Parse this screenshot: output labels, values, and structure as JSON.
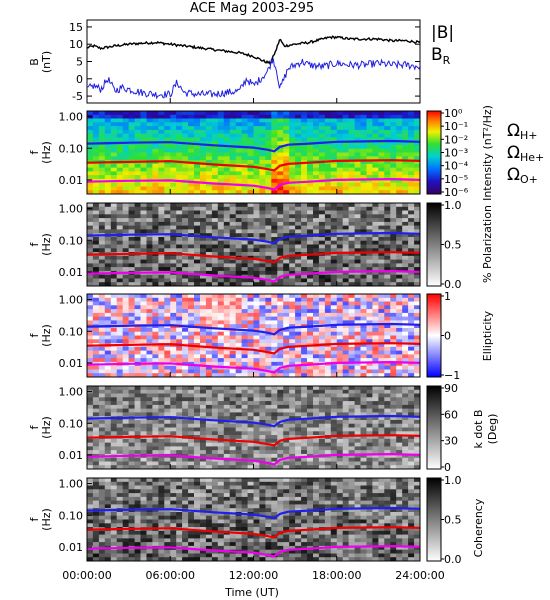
{
  "chart_data": {
    "title": "ACE Mag 2003-295",
    "xlabel": "Time (UT)",
    "x_ticks": [
      "00:00:00",
      "06:00:00",
      "12:00:00",
      "18:00:00",
      "24:00:00"
    ],
    "x_range_hours": [
      0,
      24
    ],
    "panels": [
      {
        "id": "bfield",
        "type": "line",
        "ylabel_line1": "B",
        "ylabel_line2": "(nT)",
        "ylim": [
          -7,
          17
        ],
        "y_ticks": [
          "15",
          "10",
          "5",
          "0",
          "-5"
        ],
        "y_tick_values": [
          15,
          10,
          5,
          0,
          -5
        ],
        "legend": [
          {
            "label": "|B|",
            "color": "#000000"
          },
          {
            "label": "B",
            "sub": "R",
            "color": "#2020dd"
          }
        ],
        "series": [
          {
            "name": "|B|",
            "color": "#000000",
            "x": [
              0,
              0.5,
              1,
              2,
              3,
              4,
              5,
              6,
              7,
              8,
              9,
              10,
              11,
              12,
              12.8,
              13.2,
              13.6,
              13.9,
              14.2,
              15,
              16,
              17,
              17.5,
              18,
              19,
              20,
              21,
              22,
              23,
              24
            ],
            "y": [
              9,
              9.5,
              8.8,
              9.5,
              10,
              10.3,
              10.5,
              10,
              9.5,
              9,
              8.5,
              8,
              7.5,
              6.5,
              5,
              4.5,
              8,
              11.5,
              9.5,
              10,
              10.5,
              11.5,
              12,
              12,
              11.5,
              11.5,
              11.5,
              11,
              11,
              10.5
            ]
          },
          {
            "name": "B_R",
            "color": "#2020dd",
            "x": [
              0,
              0.5,
              1,
              1.5,
              2,
              2.5,
              3,
              3.5,
              4,
              5,
              6,
              6.5,
              7,
              8,
              9,
              10,
              11,
              11.5,
              12,
              12.5,
              13,
              13.4,
              13.7,
              13.9,
              14.1,
              14.5,
              15,
              15.5,
              16,
              17,
              18,
              19,
              20,
              21,
              22,
              23,
              24
            ],
            "y": [
              -3,
              -2,
              -3,
              0,
              -3.5,
              -2.5,
              -3,
              -3.5,
              -4,
              -4.5,
              -4.5,
              -1,
              -4,
              -4.5,
              -4.5,
              -4,
              -3.5,
              0,
              -2,
              0,
              2,
              6,
              2,
              -3,
              -1,
              3,
              4,
              5,
              4,
              3.5,
              4.5,
              4,
              4,
              4.5,
              4,
              4,
              3.5
            ]
          }
        ]
      },
      {
        "id": "intensity",
        "type": "heatmap",
        "ylabel_line1": "f",
        "ylabel_line2": "(Hz)",
        "yscale": "log",
        "ylim": [
          0.0036,
          1.5
        ],
        "y_ticks": [
          "1.00",
          "0.10",
          "0.01"
        ],
        "y_tick_values": [
          1,
          0.1,
          0.01
        ],
        "colorbar_ticks": [
          "10⁰",
          "10⁻¹",
          "10⁻²",
          "10⁻³",
          "10⁻⁴",
          "10⁻⁵",
          "10⁻⁶"
        ],
        "colorbar_label": "Intensity (nT²/Hz)",
        "legend": [
          {
            "label": "Ω",
            "sub": "H+",
            "color": "#2020dd"
          },
          {
            "label": "Ω",
            "sub": "He+",
            "color": "#dd0000"
          },
          {
            "label": "Ω",
            "sub": "O+",
            "color": "#dd00dd"
          }
        ]
      },
      {
        "id": "polarization",
        "type": "heatmap",
        "ylabel_line1": "f",
        "ylabel_line2": "(Hz)",
        "yscale": "log",
        "ylim": [
          0.0036,
          1.5
        ],
        "y_ticks": [
          "1.00",
          "0.10",
          "0.01"
        ],
        "y_tick_values": [
          1,
          0.1,
          0.01
        ],
        "colorbar_ticks": [
          "1.0",
          "0.5",
          "0.0"
        ],
        "colorbar_label": "% Polarization"
      },
      {
        "id": "ellipticity",
        "type": "heatmap",
        "ylabel_line1": "f",
        "ylabel_line2": "(Hz)",
        "yscale": "log",
        "ylim": [
          0.0036,
          1.5
        ],
        "y_ticks": [
          "1.00",
          "0.10",
          "0.01"
        ],
        "y_tick_values": [
          1,
          0.1,
          0.01
        ],
        "colorbar_ticks": [
          "1",
          "0",
          "−1"
        ],
        "colorbar_label": "Ellipticity"
      },
      {
        "id": "kdotb",
        "type": "heatmap",
        "ylabel_line1": "f",
        "ylabel_line2": "(Hz)",
        "yscale": "log",
        "ylim": [
          0.0036,
          1.5
        ],
        "y_ticks": [
          "1.00",
          "0.10",
          "0.01"
        ],
        "y_tick_values": [
          1,
          0.1,
          0.01
        ],
        "colorbar_ticks": [
          "90",
          "60",
          "30",
          "0"
        ],
        "colorbar_label_line1": "k dot B",
        "colorbar_label_line2": "(Deg)"
      },
      {
        "id": "coherency",
        "type": "heatmap",
        "ylabel_line1": "f",
        "ylabel_line2": "(Hz)",
        "yscale": "log",
        "ylim": [
          0.0036,
          1.5
        ],
        "y_ticks": [
          "1.00",
          "0.10",
          "0.01"
        ],
        "y_tick_values": [
          1,
          0.1,
          0.01
        ],
        "colorbar_ticks": [
          "1.0",
          "0.5",
          "0.0"
        ],
        "colorbar_label": "Coherency"
      }
    ],
    "gyrofrequency_lines": [
      {
        "name": "H+",
        "color": "#2020ee",
        "x": [
          0,
          3,
          6,
          9,
          12,
          13,
          13.5,
          13.9,
          14.5,
          16,
          18,
          20,
          22,
          24
        ],
        "y": [
          0.14,
          0.15,
          0.155,
          0.125,
          0.105,
          0.09,
          0.08,
          0.11,
          0.13,
          0.14,
          0.16,
          0.165,
          0.17,
          0.16
        ]
      },
      {
        "name": "He+",
        "color": "#ee0000",
        "x": [
          0,
          3,
          6,
          9,
          12,
          13,
          13.5,
          13.9,
          14.5,
          16,
          18,
          20,
          22,
          24
        ],
        "y": [
          0.035,
          0.037,
          0.039,
          0.031,
          0.026,
          0.022,
          0.02,
          0.028,
          0.032,
          0.035,
          0.04,
          0.041,
          0.042,
          0.04
        ]
      },
      {
        "name": "O+",
        "color": "#ee00ee",
        "x": [
          0,
          3,
          6,
          9,
          12,
          13,
          13.5,
          13.9,
          14.5,
          16,
          18,
          20,
          22,
          24
        ],
        "y": [
          0.0088,
          0.0094,
          0.0097,
          0.0078,
          0.0066,
          0.0056,
          0.005,
          0.007,
          0.0081,
          0.0088,
          0.01,
          0.0103,
          0.0106,
          0.01
        ]
      }
    ]
  }
}
